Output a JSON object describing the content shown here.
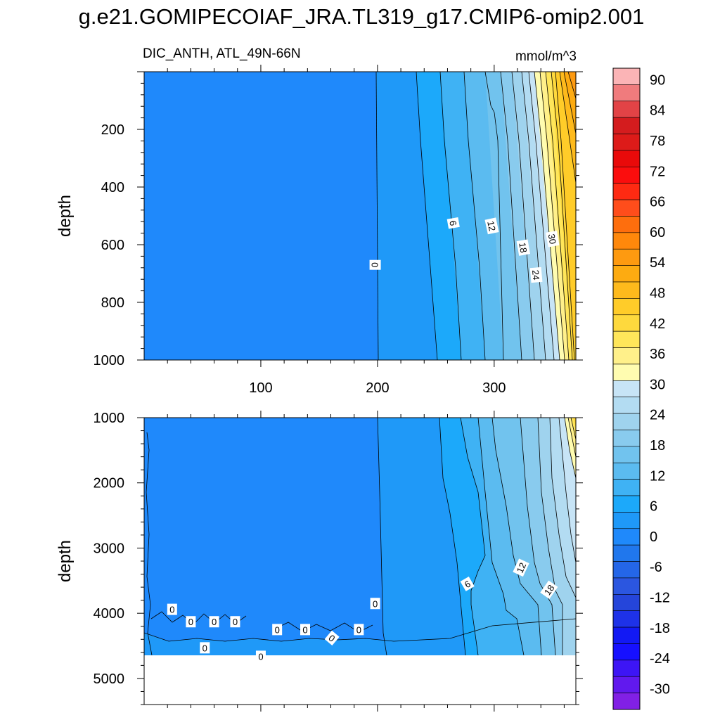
{
  "figure": {
    "title": "g.e21.GOMIPECOIAF_JRA.TL319_g17.CMIP6-omip2.001",
    "left_label": "DIC_ANTH, ATL_49N-66N",
    "units_label": "mmol/m^3"
  },
  "chart_data": [
    {
      "type": "contour",
      "panel": "upper",
      "ylabel": "depth",
      "x_ticks": [
        100,
        200,
        300
      ],
      "xlim": [
        0,
        370
      ],
      "y_ticks": [
        200,
        400,
        600,
        800,
        1000
      ],
      "ylim": [
        0,
        1000
      ],
      "y_reversed": true,
      "contour_labels": [
        {
          "text": "0",
          "x": 198,
          "y": 670,
          "angle": 90
        },
        {
          "text": "6",
          "x": 265,
          "y": 525,
          "angle": 80
        },
        {
          "text": "12",
          "x": 298,
          "y": 535,
          "angle": 78
        },
        {
          "text": "18",
          "x": 325,
          "y": 610,
          "angle": 80
        },
        {
          "text": "24",
          "x": 336,
          "y": 705,
          "angle": 85
        },
        {
          "text": "30",
          "x": 350,
          "y": 580,
          "angle": 80
        }
      ]
    },
    {
      "type": "contour",
      "panel": "lower",
      "ylabel": "depth",
      "xlim": [
        0,
        370
      ],
      "y_ticks": [
        1000,
        2000,
        3000,
        4000,
        5000
      ],
      "ylim": [
        1000,
        5400
      ],
      "y_reversed": true,
      "bottom": 4600,
      "contour_labels": [
        {
          "text": "0",
          "x": 198,
          "y": 3850,
          "angle": 0
        },
        {
          "text": "6",
          "x": 277,
          "y": 3550,
          "angle": -30
        },
        {
          "text": "12",
          "x": 323,
          "y": 3300,
          "angle": -65
        },
        {
          "text": "18",
          "x": 347,
          "y": 3640,
          "angle": -55
        },
        {
          "text": "0",
          "x": 24,
          "y": 3940,
          "angle": 0
        },
        {
          "text": "0",
          "x": 40,
          "y": 4130,
          "angle": 0
        },
        {
          "text": "0",
          "x": 60,
          "y": 4130,
          "angle": 0
        },
        {
          "text": "0",
          "x": 78,
          "y": 4130,
          "angle": 0
        },
        {
          "text": "0",
          "x": 114,
          "y": 4250,
          "angle": 0
        },
        {
          "text": "0",
          "x": 138,
          "y": 4250,
          "angle": 0
        },
        {
          "text": "0",
          "x": 161,
          "y": 4380,
          "angle": 40
        },
        {
          "text": "0",
          "x": 184,
          "y": 4250,
          "angle": 0
        },
        {
          "text": "0",
          "x": 52,
          "y": 4530,
          "angle": 0
        },
        {
          "text": "0",
          "x": 100,
          "y": 4660,
          "angle": 0
        }
      ]
    }
  ],
  "colorbar": {
    "tick_labels": [
      "90",
      "84",
      "78",
      "72",
      "66",
      "60",
      "54",
      "48",
      "42",
      "36",
      "30",
      "24",
      "18",
      "12",
      "6",
      "0",
      "-6",
      "-12",
      "-18",
      "-24",
      "-30"
    ],
    "colors_top_to_bottom": [
      "#fbb4b6",
      "#f07b7d",
      "#e24346",
      "#d41c1e",
      "#dd1b19",
      "#e90a0a",
      "#fb0d0d",
      "#fe2a12",
      "#ff4d1b",
      "#fe6e0d",
      "#ff880b",
      "#fe9a10",
      "#fdab11",
      "#feba1c",
      "#ffcc29",
      "#fed93d",
      "#ffe65a",
      "#fff08a",
      "#fffcb0",
      "#c7e4f6",
      "#b3dcf2",
      "#9fd3ee",
      "#89cbee",
      "#71c3ee",
      "#5bbbf0",
      "#3fb2f4",
      "#1ca9fa",
      "#1f99f8",
      "#1f89fb",
      "#2077ed",
      "#2466e8",
      "#2b56e0",
      "#2545da",
      "#1e32e8",
      "#1219f4",
      "#1610ff",
      "#3d15f5",
      "#6119ee",
      "#8120e5"
    ]
  }
}
